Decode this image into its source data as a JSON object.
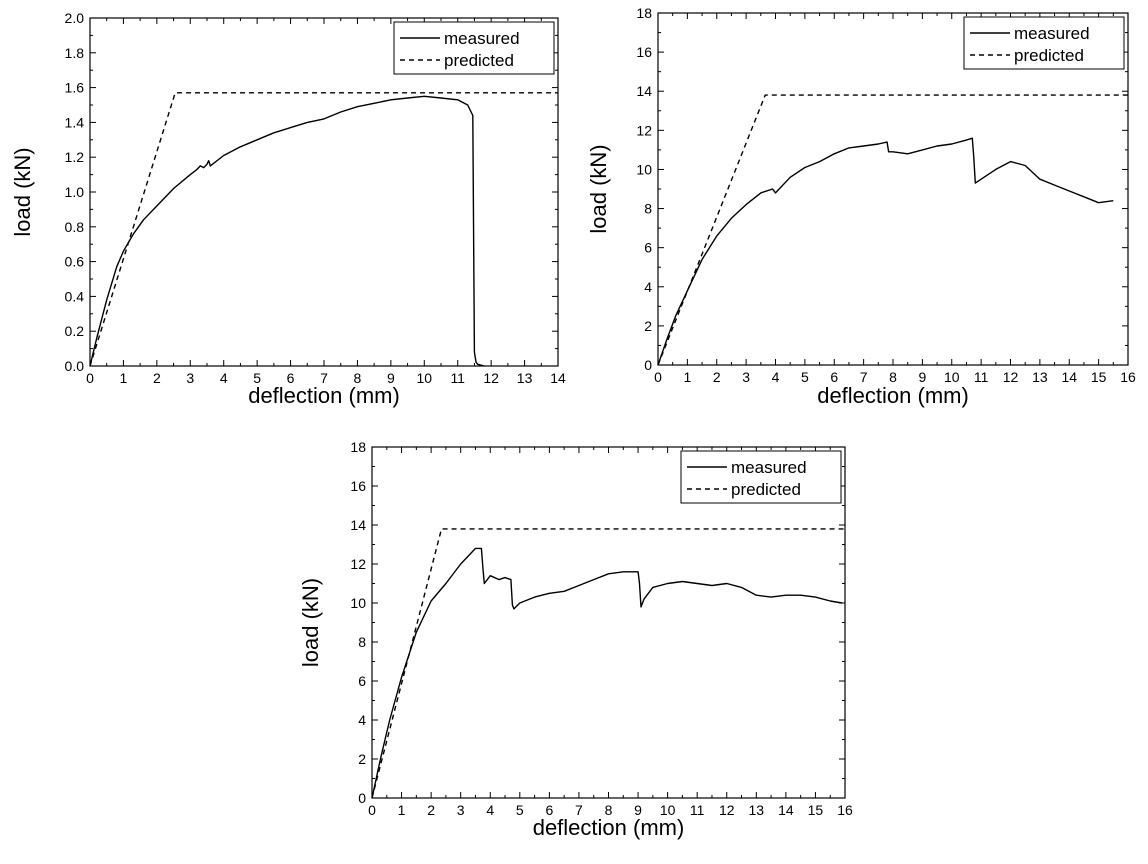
{
  "chart_data": [
    {
      "type": "line",
      "xlabel": "deflection (mm)",
      "ylabel": "load (kN)",
      "xlim": [
        0,
        14
      ],
      "ylim": [
        0,
        2.0
      ],
      "xticks": [
        "0",
        "1",
        "2",
        "3",
        "4",
        "5",
        "6",
        "7",
        "8",
        "9",
        "10",
        "11",
        "12",
        "13",
        "14"
      ],
      "yticks": [
        "0.0",
        "0.2",
        "0.4",
        "0.6",
        "0.8",
        "1.0",
        "1.2",
        "1.4",
        "1.6",
        "1.8",
        "2.0"
      ],
      "legend_position": "top-right",
      "grid": false,
      "series": [
        {
          "name": "measured",
          "style": "solid",
          "x": [
            0,
            0.2,
            0.5,
            0.8,
            1.0,
            1.3,
            1.6,
            2.0,
            2.5,
            3.0,
            3.2,
            3.3,
            3.4,
            3.5,
            3.55,
            3.6,
            4.0,
            4.5,
            5.0,
            5.5,
            6.0,
            6.5,
            7.0,
            7.5,
            8.0,
            8.5,
            9.0,
            9.5,
            10.0,
            10.5,
            11.0,
            11.3,
            11.45,
            11.5,
            11.55,
            11.6,
            11.8
          ],
          "y": [
            0,
            0.16,
            0.38,
            0.57,
            0.66,
            0.76,
            0.84,
            0.92,
            1.02,
            1.1,
            1.13,
            1.15,
            1.14,
            1.16,
            1.18,
            1.15,
            1.21,
            1.26,
            1.3,
            1.34,
            1.37,
            1.4,
            1.42,
            1.46,
            1.49,
            1.51,
            1.53,
            1.54,
            1.55,
            1.54,
            1.53,
            1.5,
            1.44,
            0.08,
            0.02,
            0.01,
            0.0
          ]
        },
        {
          "name": "predicted",
          "style": "dashed",
          "x": [
            0,
            2.55,
            14
          ],
          "y": [
            0,
            1.57,
            1.57
          ]
        }
      ]
    },
    {
      "type": "line",
      "xlabel": "deflection (mm)",
      "ylabel": "load (kN)",
      "xlim": [
        0,
        16
      ],
      "ylim": [
        0,
        18
      ],
      "xticks": [
        "0",
        "1",
        "2",
        "3",
        "4",
        "5",
        "6",
        "7",
        "8",
        "9",
        "10",
        "11",
        "12",
        "13",
        "14",
        "15",
        "16"
      ],
      "yticks": [
        "0",
        "2",
        "4",
        "6",
        "8",
        "10",
        "12",
        "14",
        "16",
        "18"
      ],
      "legend_position": "top-right",
      "grid": false,
      "series": [
        {
          "name": "measured",
          "style": "solid",
          "x": [
            0,
            0.3,
            0.6,
            1.0,
            1.5,
            2.0,
            2.5,
            3.0,
            3.5,
            3.9,
            4.0,
            4.5,
            5.0,
            5.5,
            6.0,
            6.5,
            7.0,
            7.5,
            7.8,
            7.85,
            8.0,
            8.5,
            9.0,
            9.5,
            10.0,
            10.5,
            10.7,
            10.75,
            10.8,
            11.0,
            11.5,
            12.0,
            12.5,
            13.0,
            13.5,
            14.0,
            14.5,
            15.0,
            15.5
          ],
          "y": [
            0,
            1.3,
            2.5,
            3.8,
            5.4,
            6.6,
            7.5,
            8.2,
            8.8,
            9.0,
            8.8,
            9.6,
            10.1,
            10.4,
            10.8,
            11.1,
            11.2,
            11.3,
            11.4,
            10.9,
            10.9,
            10.8,
            11.0,
            11.2,
            11.3,
            11.5,
            11.6,
            10.6,
            9.3,
            9.5,
            10.0,
            10.4,
            10.2,
            9.5,
            9.2,
            8.9,
            8.6,
            8.3,
            8.4
          ]
        },
        {
          "name": "predicted",
          "style": "dashed",
          "x": [
            0,
            3.65,
            16
          ],
          "y": [
            0,
            13.8,
            13.8
          ]
        }
      ]
    },
    {
      "type": "line",
      "xlabel": "deflection (mm)",
      "ylabel": "load (kN)",
      "xlim": [
        0,
        16
      ],
      "ylim": [
        0,
        18
      ],
      "xticks": [
        "0",
        "1",
        "2",
        "3",
        "4",
        "5",
        "6",
        "7",
        "8",
        "9",
        "10",
        "11",
        "12",
        "13",
        "14",
        "15",
        "16"
      ],
      "yticks": [
        "0",
        "2",
        "4",
        "6",
        "8",
        "10",
        "12",
        "14",
        "16",
        "18"
      ],
      "legend_position": "top-right",
      "grid": false,
      "series": [
        {
          "name": "measured",
          "style": "solid",
          "x": [
            0,
            0.3,
            0.6,
            1.0,
            1.5,
            2.0,
            2.5,
            3.0,
            3.5,
            3.7,
            3.75,
            3.8,
            4.0,
            4.3,
            4.5,
            4.7,
            4.75,
            4.8,
            5.0,
            5.5,
            6.0,
            6.5,
            7.0,
            7.5,
            8.0,
            8.5,
            9.0,
            9.05,
            9.1,
            9.2,
            9.5,
            10.0,
            10.5,
            11.0,
            11.5,
            12.0,
            12.5,
            13.0,
            13.5,
            14.0,
            14.5,
            15.0,
            15.5,
            15.9
          ],
          "y": [
            0,
            2.1,
            4.0,
            6.2,
            8.5,
            10.1,
            11.0,
            12.0,
            12.8,
            12.8,
            11.8,
            11.0,
            11.4,
            11.2,
            11.3,
            11.2,
            9.9,
            9.7,
            10.0,
            10.3,
            10.5,
            10.6,
            10.9,
            11.2,
            11.5,
            11.6,
            11.6,
            11.0,
            9.8,
            10.2,
            10.8,
            11.0,
            11.1,
            11.0,
            10.9,
            11.0,
            10.8,
            10.4,
            10.3,
            10.4,
            10.4,
            10.3,
            10.1,
            10.0
          ]
        },
        {
          "name": "predicted",
          "style": "dashed",
          "x": [
            0,
            2.35,
            16
          ],
          "y": [
            0,
            13.8,
            13.8
          ]
        }
      ]
    }
  ]
}
